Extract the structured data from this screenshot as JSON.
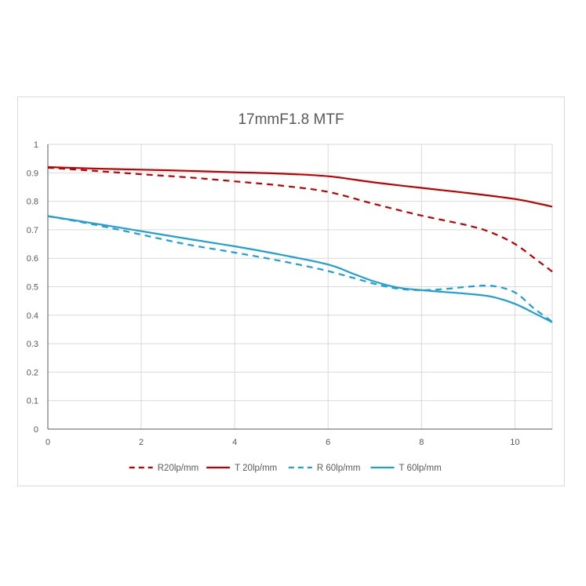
{
  "chart_data": {
    "type": "line",
    "title": "17mmF1.8  MTF",
    "xlabel": "",
    "ylabel": "",
    "xlim": [
      0,
      10.8
    ],
    "ylim": [
      0,
      1
    ],
    "x_ticks": [
      "0",
      "2",
      "4",
      "6",
      "8",
      "10"
    ],
    "y_ticks": [
      "0",
      "0.1",
      "0.2",
      "0.3",
      "0.4",
      "0.5",
      "0.6",
      "0.7",
      "0.8",
      "0.9",
      "1"
    ],
    "grid": true,
    "legend_position": "bottom",
    "series": [
      {
        "name": "R20lp/mm",
        "color": "#c00000",
        "dash": "dashed",
        "x": [
          0,
          1,
          2,
          3,
          4,
          5,
          6,
          7,
          8,
          9,
          9.5,
          10,
          10.5,
          10.8
        ],
        "y": [
          0.918,
          0.907,
          0.895,
          0.884,
          0.87,
          0.855,
          0.833,
          0.79,
          0.75,
          0.715,
          0.69,
          0.65,
          0.59,
          0.553
        ]
      },
      {
        "name": "T 20lp/mm",
        "color": "#c00000",
        "dash": "solid",
        "x": [
          0,
          1,
          2,
          3,
          4,
          5,
          6,
          7,
          8,
          9,
          10,
          10.5,
          10.8
        ],
        "y": [
          0.92,
          0.915,
          0.911,
          0.907,
          0.902,
          0.897,
          0.888,
          0.866,
          0.847,
          0.829,
          0.808,
          0.792,
          0.781
        ]
      },
      {
        "name": "R 60lp/mm",
        "color": "#1f9fd4",
        "dash": "dashed",
        "x": [
          0,
          1,
          2,
          3,
          4,
          5,
          6,
          7,
          7.5,
          8,
          8.5,
          9,
          9.5,
          10,
          10.4,
          10.8
        ],
        "y": [
          0.748,
          0.718,
          0.683,
          0.648,
          0.62,
          0.59,
          0.555,
          0.51,
          0.493,
          0.488,
          0.492,
          0.5,
          0.503,
          0.48,
          0.425,
          0.377
        ]
      },
      {
        "name": "T 60lp/mm",
        "color": "#1f9fd4",
        "dash": "solid",
        "x": [
          0,
          1,
          2,
          3,
          4,
          5,
          6,
          6.5,
          7,
          7.5,
          8,
          9,
          9.5,
          10,
          10.5,
          10.8
        ],
        "y": [
          0.748,
          0.722,
          0.695,
          0.668,
          0.642,
          0.612,
          0.578,
          0.548,
          0.518,
          0.497,
          0.488,
          0.475,
          0.465,
          0.44,
          0.4,
          0.375
        ]
      }
    ]
  }
}
